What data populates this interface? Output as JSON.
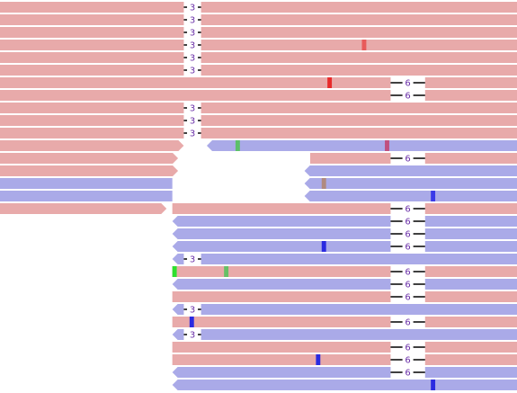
{
  "rows": [
    [
      {
        "start": 0,
        "end": 90,
        "strand": "+",
        "deletions": [
          {
            "start": 32,
            "length": 3
          }
        ],
        "mismatches": []
      }
    ],
    [
      {
        "start": 0,
        "end": 90,
        "strand": "+",
        "deletions": [
          {
            "start": 32,
            "length": 3
          }
        ],
        "mismatches": []
      }
    ],
    [
      {
        "start": 0,
        "end": 90,
        "strand": "+",
        "deletions": [
          {
            "start": 32,
            "length": 3
          }
        ],
        "mismatches": []
      }
    ],
    [
      {
        "start": 0,
        "end": 90,
        "strand": "+",
        "deletions": [
          {
            "start": 32,
            "length": 3
          }
        ],
        "mismatches": [
          {
            "pos": 63,
            "color": "#e85a5a"
          }
        ]
      }
    ],
    [
      {
        "start": 0,
        "end": 90,
        "strand": "+",
        "deletions": [
          {
            "start": 32,
            "length": 3
          }
        ],
        "mismatches": []
      }
    ],
    [
      {
        "start": 0,
        "end": 90,
        "strand": "+",
        "deletions": [
          {
            "start": 32,
            "length": 3
          }
        ],
        "mismatches": []
      }
    ],
    [
      {
        "start": 0,
        "end": 90,
        "strand": "+",
        "deletions": [
          {
            "start": 68,
            "length": 6
          }
        ],
        "mismatches": [
          {
            "pos": 57,
            "color": "#e82a2a"
          }
        ]
      }
    ],
    [
      {
        "start": 0,
        "end": 90,
        "strand": "+",
        "deletions": [
          {
            "start": 68,
            "length": 6
          }
        ],
        "mismatches": []
      }
    ],
    [
      {
        "start": 0,
        "end": 90,
        "strand": "+",
        "deletions": [
          {
            "start": 32,
            "length": 3
          }
        ],
        "mismatches": []
      }
    ],
    [
      {
        "start": 0,
        "end": 90,
        "strand": "+",
        "deletions": [
          {
            "start": 32,
            "length": 3
          }
        ],
        "mismatches": []
      }
    ],
    [
      {
        "start": 0,
        "end": 90,
        "strand": "+",
        "deletions": [
          {
            "start": 32,
            "length": 3
          }
        ],
        "mismatches": []
      }
    ],
    [
      {
        "start": 0,
        "end": 32,
        "strand": "+",
        "deletions": [],
        "mismatches": []
      },
      {
        "start": 36,
        "end": 90,
        "strand": "-",
        "deletions": [],
        "mismatches": [
          {
            "pos": 41,
            "color": "#5cc06a"
          },
          {
            "pos": 67,
            "color": "#c0507e"
          }
        ]
      }
    ],
    [
      {
        "start": 0,
        "end": 31,
        "strand": "+",
        "deletions": [],
        "mismatches": []
      },
      {
        "start": 54,
        "end": 90,
        "strand": "+",
        "deletions": [
          {
            "start": 68,
            "length": 6
          }
        ],
        "mismatches": []
      }
    ],
    [
      {
        "start": 0,
        "end": 31,
        "strand": "+",
        "deletions": [],
        "mismatches": []
      },
      {
        "start": 53,
        "end": 90,
        "strand": "-",
        "deletions": [],
        "mismatches": []
      }
    ],
    [
      {
        "start": 0,
        "end": 30,
        "strand": "-",
        "deletions": [],
        "mismatches": []
      },
      {
        "start": 53,
        "end": 90,
        "strand": "-",
        "deletions": [],
        "mismatches": [
          {
            "pos": 56,
            "color": "#b08a80"
          }
        ]
      }
    ],
    [
      {
        "start": 0,
        "end": 30,
        "strand": "-",
        "deletions": [],
        "mismatches": []
      },
      {
        "start": 53,
        "end": 90,
        "strand": "-",
        "deletions": [],
        "mismatches": [
          {
            "pos": 75,
            "color": "#3a3ae8"
          }
        ]
      }
    ],
    [
      {
        "start": 0,
        "end": 29,
        "strand": "+",
        "deletions": [],
        "mismatches": []
      },
      {
        "start": 30,
        "end": 90,
        "strand": "+",
        "deletions": [
          {
            "start": 68,
            "length": 6
          }
        ],
        "mismatches": []
      }
    ],
    [
      {
        "start": 30,
        "end": 90,
        "strand": "-",
        "deletions": [
          {
            "start": 68,
            "length": 6
          }
        ],
        "mismatches": []
      }
    ],
    [
      {
        "start": 30,
        "end": 90,
        "strand": "-",
        "deletions": [
          {
            "start": 68,
            "length": 6
          }
        ],
        "mismatches": []
      }
    ],
    [
      {
        "start": 30,
        "end": 90,
        "strand": "-",
        "deletions": [
          {
            "start": 68,
            "length": 6
          }
        ],
        "mismatches": [
          {
            "pos": 56,
            "color": "#2a2ae0"
          }
        ]
      }
    ],
    [
      {
        "start": 30,
        "end": 90,
        "strand": "-",
        "deletions": [
          {
            "start": 32,
            "length": 3
          }
        ],
        "mismatches": []
      }
    ],
    [
      {
        "start": 30,
        "end": 90,
        "strand": "+",
        "deletions": [
          {
            "start": 68,
            "length": 6
          }
        ],
        "mismatches": [
          {
            "pos": 30,
            "color": "#2ee02e"
          },
          {
            "pos": 39,
            "color": "#66c066"
          }
        ]
      }
    ],
    [
      {
        "start": 30,
        "end": 90,
        "strand": "-",
        "deletions": [
          {
            "start": 68,
            "length": 6
          }
        ],
        "mismatches": []
      }
    ],
    [
      {
        "start": 30,
        "end": 90,
        "strand": "+",
        "deletions": [
          {
            "start": 68,
            "length": 6
          }
        ],
        "mismatches": []
      }
    ],
    [
      {
        "start": 30,
        "end": 90,
        "strand": "-",
        "deletions": [
          {
            "start": 32,
            "length": 3
          }
        ],
        "mismatches": []
      }
    ],
    [
      {
        "start": 30,
        "end": 90,
        "strand": "+",
        "deletions": [
          {
            "start": 68,
            "length": 6
          }
        ],
        "mismatches": [
          {
            "pos": 33,
            "color": "#2a2ae0"
          }
        ]
      }
    ],
    [
      {
        "start": 30,
        "end": 90,
        "strand": "-",
        "deletions": [
          {
            "start": 32,
            "length": 3
          }
        ],
        "mismatches": []
      }
    ],
    [
      {
        "start": 30,
        "end": 90,
        "strand": "+",
        "deletions": [
          {
            "start": 68,
            "length": 6
          }
        ],
        "mismatches": []
      }
    ],
    [
      {
        "start": 30,
        "end": 90,
        "strand": "+",
        "deletions": [
          {
            "start": 68,
            "length": 6
          }
        ],
        "mismatches": [
          {
            "pos": 55,
            "color": "#2a2ae0"
          }
        ]
      }
    ],
    [
      {
        "start": 30,
        "end": 90,
        "strand": "-",
        "deletions": [
          {
            "start": 68,
            "length": 6
          }
        ],
        "mismatches": []
      }
    ],
    [
      {
        "start": 30,
        "end": 90,
        "strand": "-",
        "deletions": [],
        "mismatches": [
          {
            "pos": 75,
            "color": "#2a2ae0"
          }
        ]
      }
    ]
  ]
}
